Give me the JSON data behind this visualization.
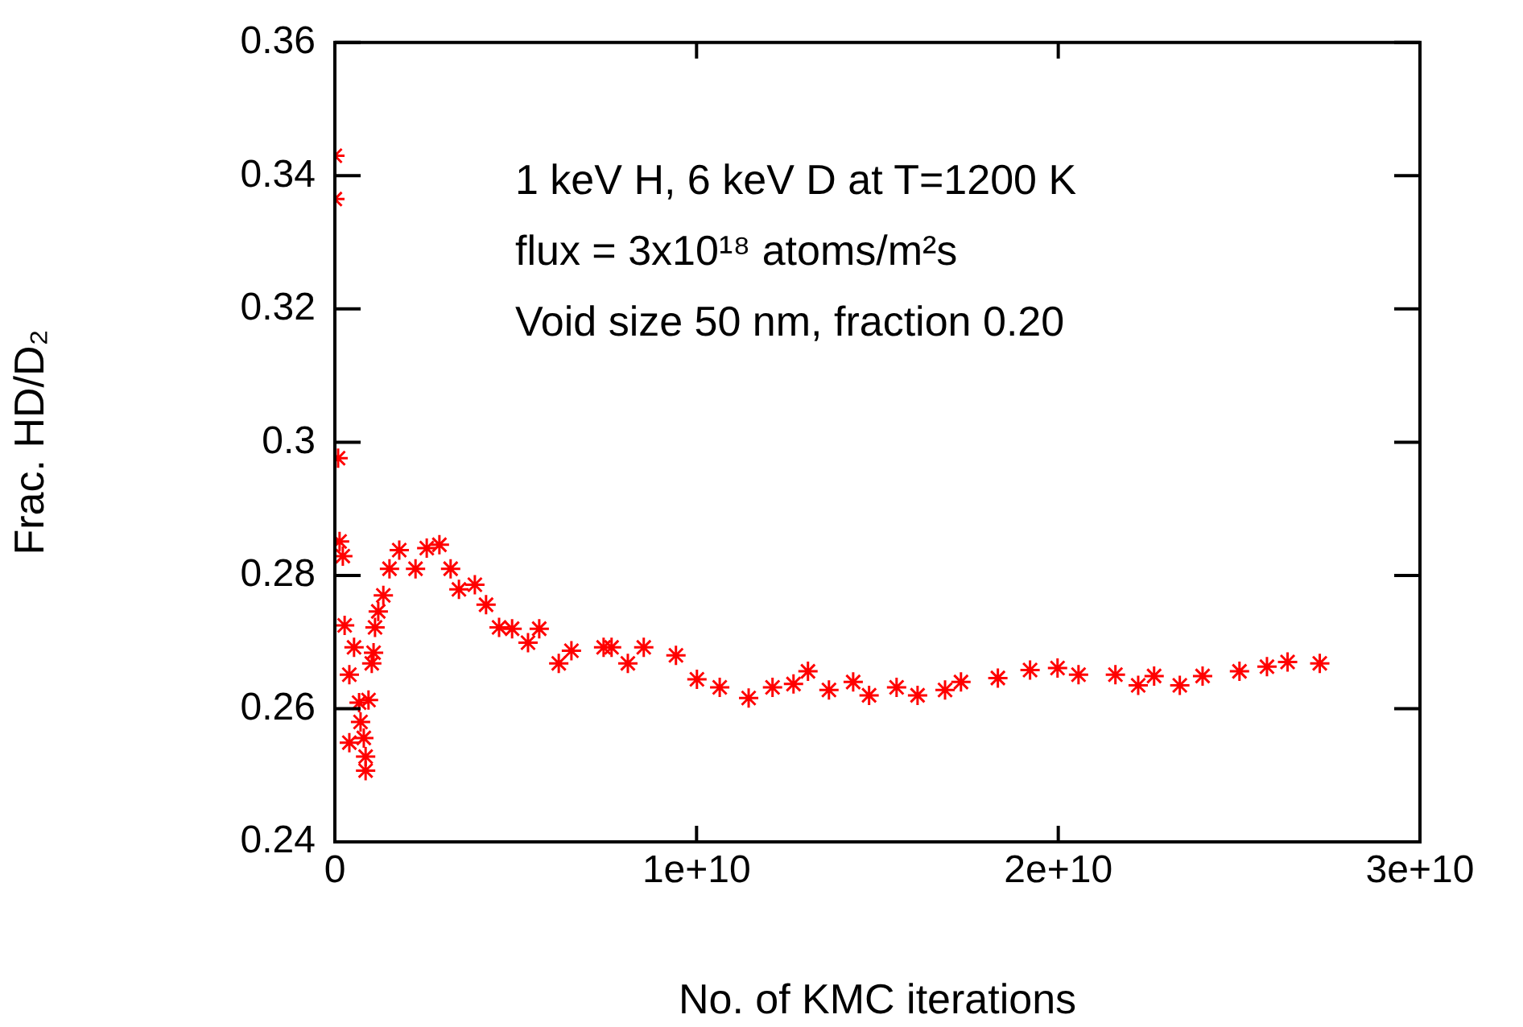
{
  "chart_data": {
    "type": "scatter",
    "xlabel": "No. of KMC iterations",
    "ylabel": "Frac. HD/D₂",
    "annotations": [
      "1 keV H, 6 keV D at T=1200 K",
      "flux = 3x10¹⁸ atoms/m²s",
      "Void size 50 nm, fraction 0.20"
    ],
    "x": [
      0,
      0,
      89000000.0,
      130000000.0,
      220000000.0,
      270000000.0,
      530000000.0,
      400000000.0,
      670000000.0,
      930000000.0,
      710000000.0,
      400000000.0,
      800000000.0,
      850000000.0,
      850000000.0,
      1070000000.0,
      1020000000.0,
      1110000000.0,
      1200000000.0,
      1340000000.0,
      1510000000.0,
      1780000000.0,
      2230000000.0,
      2540000000.0,
      2890000000.0,
      3200000000.0,
      3430000000.0,
      3870000000.0,
      4180000000.0,
      4540000000.0,
      4900000000.0,
      5340000000.0,
      5650000000.0,
      6190000000.0,
      6540000000.0,
      7430000000.0,
      7650000000.0,
      8100000000.0,
      8540000000.0,
      9430000000.0,
      10010000000.0,
      10640000000.0,
      11440000000.0,
      12100000000.0,
      12680000000.0,
      13080000000.0,
      13660000000.0,
      14330000000.0,
      14770000000.0,
      15530000000.0,
      16110000000.0,
      16870000000.0,
      17310000000.0,
      18330000000.0,
      19220000000.0,
      19980000000.0,
      20560000000.0,
      21580000000.0,
      22210000000.0,
      22650000000.0,
      23360000000.0,
      23990000000.0,
      25010000000.0,
      25770000000.0,
      26340000000.0,
      27230000000.0
    ],
    "series": [
      {
        "color": "#ff0000",
        "values": [
          0.343,
          0.3365,
          0.2976,
          0.2851,
          0.2829,
          0.2725,
          0.2692,
          0.2651,
          0.2609,
          0.2613,
          0.258,
          0.2549,
          0.2556,
          0.2528,
          0.2507,
          0.2684,
          0.2668,
          0.2722,
          0.2746,
          0.277,
          0.281,
          0.2838,
          0.281,
          0.2841,
          0.2846,
          0.281,
          0.2779,
          0.2786,
          0.2756,
          0.2722,
          0.272,
          0.2699,
          0.272,
          0.2668,
          0.2687,
          0.2692,
          0.2692,
          0.2668,
          0.2692,
          0.268,
          0.2644,
          0.2632,
          0.2616,
          0.2632,
          0.2637,
          0.2656,
          0.2628,
          0.264,
          0.262,
          0.2632,
          0.262,
          0.2628,
          0.264,
          0.2646,
          0.2658,
          0.2661,
          0.2651,
          0.2651,
          0.2635,
          0.2649,
          0.2635,
          0.2649,
          0.2656,
          0.2663,
          0.267,
          0.2668
        ]
      }
    ],
    "xlim": [
      0,
      30000000000.0
    ],
    "xticks": [
      0,
      {
        "value": 10000000000.0,
        "label": "1e+10"
      },
      {
        "value": 20000000000.0,
        "label": "2e+10"
      },
      {
        "value": 30000000000.0,
        "label": "3e+10"
      }
    ],
    "ylim": [
      0.24,
      0.36
    ],
    "yticks": [
      0.24,
      0.26,
      0.28,
      0.3,
      0.32,
      0.34,
      0.36
    ],
    "marker": "cross",
    "grid": false,
    "legend": false
  }
}
